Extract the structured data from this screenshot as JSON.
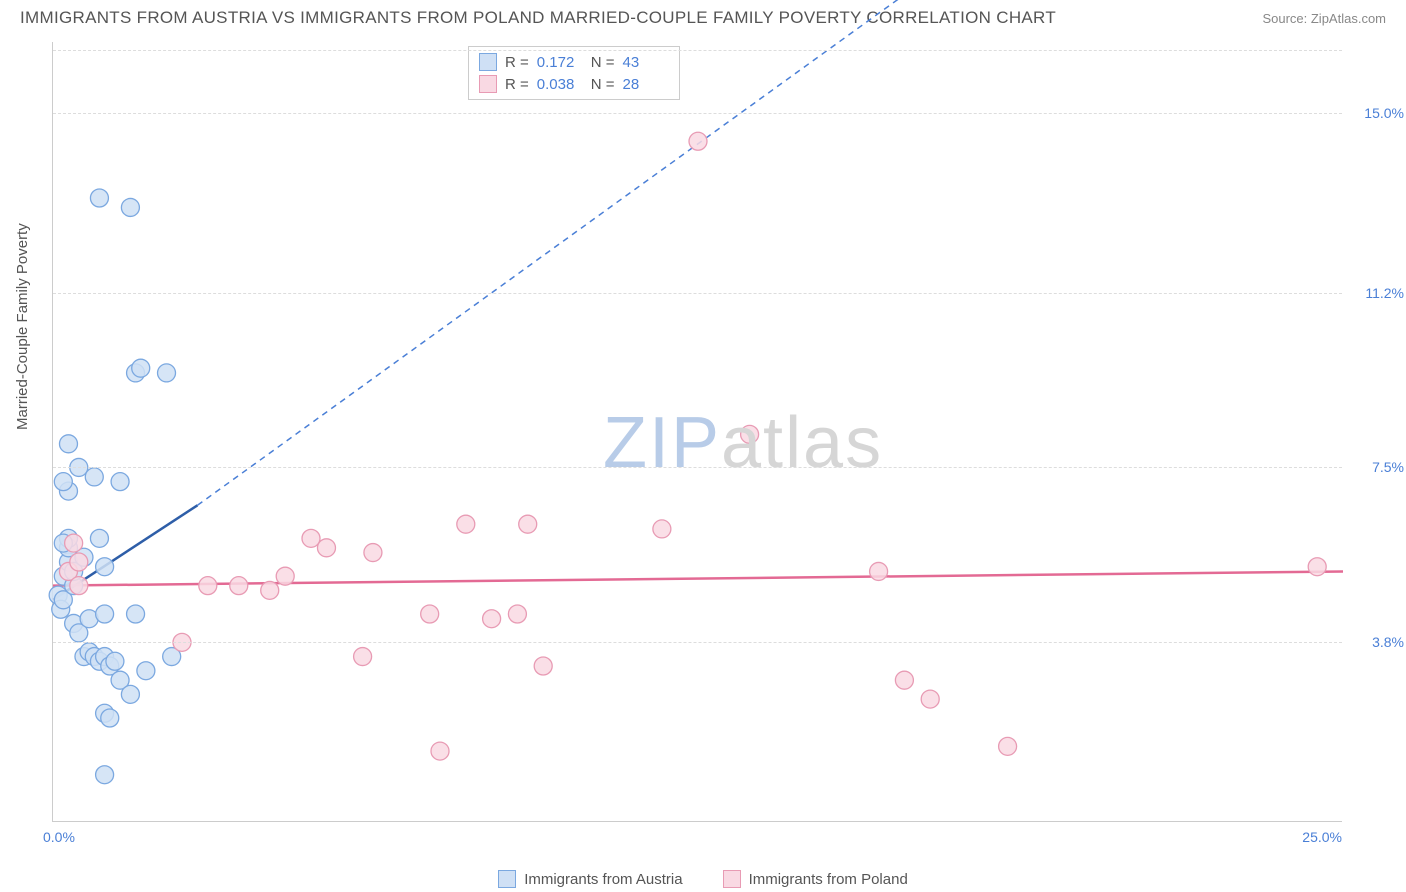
{
  "title": "IMMIGRANTS FROM AUSTRIA VS IMMIGRANTS FROM POLAND MARRIED-COUPLE FAMILY POVERTY CORRELATION CHART",
  "source": "Source: ZipAtlas.com",
  "ylabel": "Married-Couple Family Poverty",
  "watermark_zip": "ZIP",
  "watermark_atlas": "atlas",
  "chart": {
    "type": "scatter",
    "xlim": [
      0,
      25
    ],
    "ylim": [
      0,
      16.5
    ],
    "xtick_min": "0.0%",
    "xtick_max": "25.0%",
    "yticks": [
      {
        "val": 3.8,
        "label": "3.8%"
      },
      {
        "val": 7.5,
        "label": "7.5%"
      },
      {
        "val": 11.2,
        "label": "11.2%"
      },
      {
        "val": 15.0,
        "label": "15.0%"
      }
    ],
    "grid_color": "#dddddd",
    "background_color": "#ffffff",
    "marker_radius": 9,
    "series": [
      {
        "name": "Immigrants from Austria",
        "color_stroke": "#7ba8e0",
        "color_fill": "#cfe0f5",
        "R": "0.172",
        "N": "43",
        "points": [
          [
            0.1,
            4.8
          ],
          [
            0.2,
            5.2
          ],
          [
            0.3,
            5.5
          ],
          [
            0.3,
            5.8
          ],
          [
            0.3,
            6.0
          ],
          [
            0.15,
            4.5
          ],
          [
            0.2,
            4.7
          ],
          [
            0.4,
            4.2
          ],
          [
            0.5,
            4.0
          ],
          [
            0.6,
            3.5
          ],
          [
            0.7,
            3.6
          ],
          [
            0.8,
            3.5
          ],
          [
            0.9,
            3.4
          ],
          [
            1.0,
            3.5
          ],
          [
            1.1,
            3.3
          ],
          [
            1.2,
            3.4
          ],
          [
            1.3,
            3.0
          ],
          [
            1.5,
            2.7
          ],
          [
            1.0,
            2.3
          ],
          [
            1.1,
            2.2
          ],
          [
            1.0,
            1.0
          ],
          [
            0.3,
            7.0
          ],
          [
            0.2,
            7.2
          ],
          [
            0.5,
            7.5
          ],
          [
            0.8,
            7.3
          ],
          [
            1.3,
            7.2
          ],
          [
            0.3,
            8.0
          ],
          [
            0.7,
            4.3
          ],
          [
            1.0,
            4.4
          ],
          [
            1.0,
            5.4
          ],
          [
            1.6,
            4.4
          ],
          [
            1.8,
            3.2
          ],
          [
            2.3,
            3.5
          ],
          [
            0.9,
            13.2
          ],
          [
            1.5,
            13.0
          ],
          [
            1.6,
            9.5
          ],
          [
            1.7,
            9.6
          ],
          [
            2.2,
            9.5
          ],
          [
            0.4,
            5.0
          ],
          [
            0.4,
            5.3
          ],
          [
            0.6,
            5.6
          ],
          [
            0.2,
            5.9
          ],
          [
            0.9,
            6.0
          ]
        ],
        "trend": {
          "x1": 0,
          "y1": 4.7,
          "x2": 2.8,
          "y2": 6.7,
          "x2_dash": 16.5,
          "y2_dash": 17.5
        }
      },
      {
        "name": "Immigrants from Poland",
        "color_stroke": "#e89bb4",
        "color_fill": "#f9d9e3",
        "R": "0.038",
        "N": "28",
        "points": [
          [
            0.3,
            5.3
          ],
          [
            0.5,
            5.5
          ],
          [
            0.5,
            5.0
          ],
          [
            0.4,
            5.9
          ],
          [
            2.5,
            3.8
          ],
          [
            3.0,
            5.0
          ],
          [
            3.6,
            5.0
          ],
          [
            4.2,
            4.9
          ],
          [
            5.0,
            6.0
          ],
          [
            5.3,
            5.8
          ],
          [
            6.2,
            5.7
          ],
          [
            6.0,
            3.5
          ],
          [
            7.3,
            4.4
          ],
          [
            7.5,
            1.5
          ],
          [
            8.0,
            6.3
          ],
          [
            8.5,
            4.3
          ],
          [
            9.0,
            4.4
          ],
          [
            9.5,
            3.3
          ],
          [
            9.2,
            6.3
          ],
          [
            11.8,
            6.2
          ],
          [
            12.5,
            14.4
          ],
          [
            13.5,
            8.2
          ],
          [
            16.0,
            5.3
          ],
          [
            16.5,
            3.0
          ],
          [
            17.0,
            2.6
          ],
          [
            18.5,
            1.6
          ],
          [
            24.5,
            5.4
          ],
          [
            4.5,
            5.2
          ]
        ],
        "trend": {
          "x1": 0,
          "y1": 5.0,
          "x2": 25,
          "y2": 5.3
        }
      }
    ]
  },
  "legend_labels": {
    "austria": "Immigrants from Austria",
    "poland": "Immigrants from Poland"
  },
  "stats_labels": {
    "R": "R  =",
    "N": "N  ="
  }
}
